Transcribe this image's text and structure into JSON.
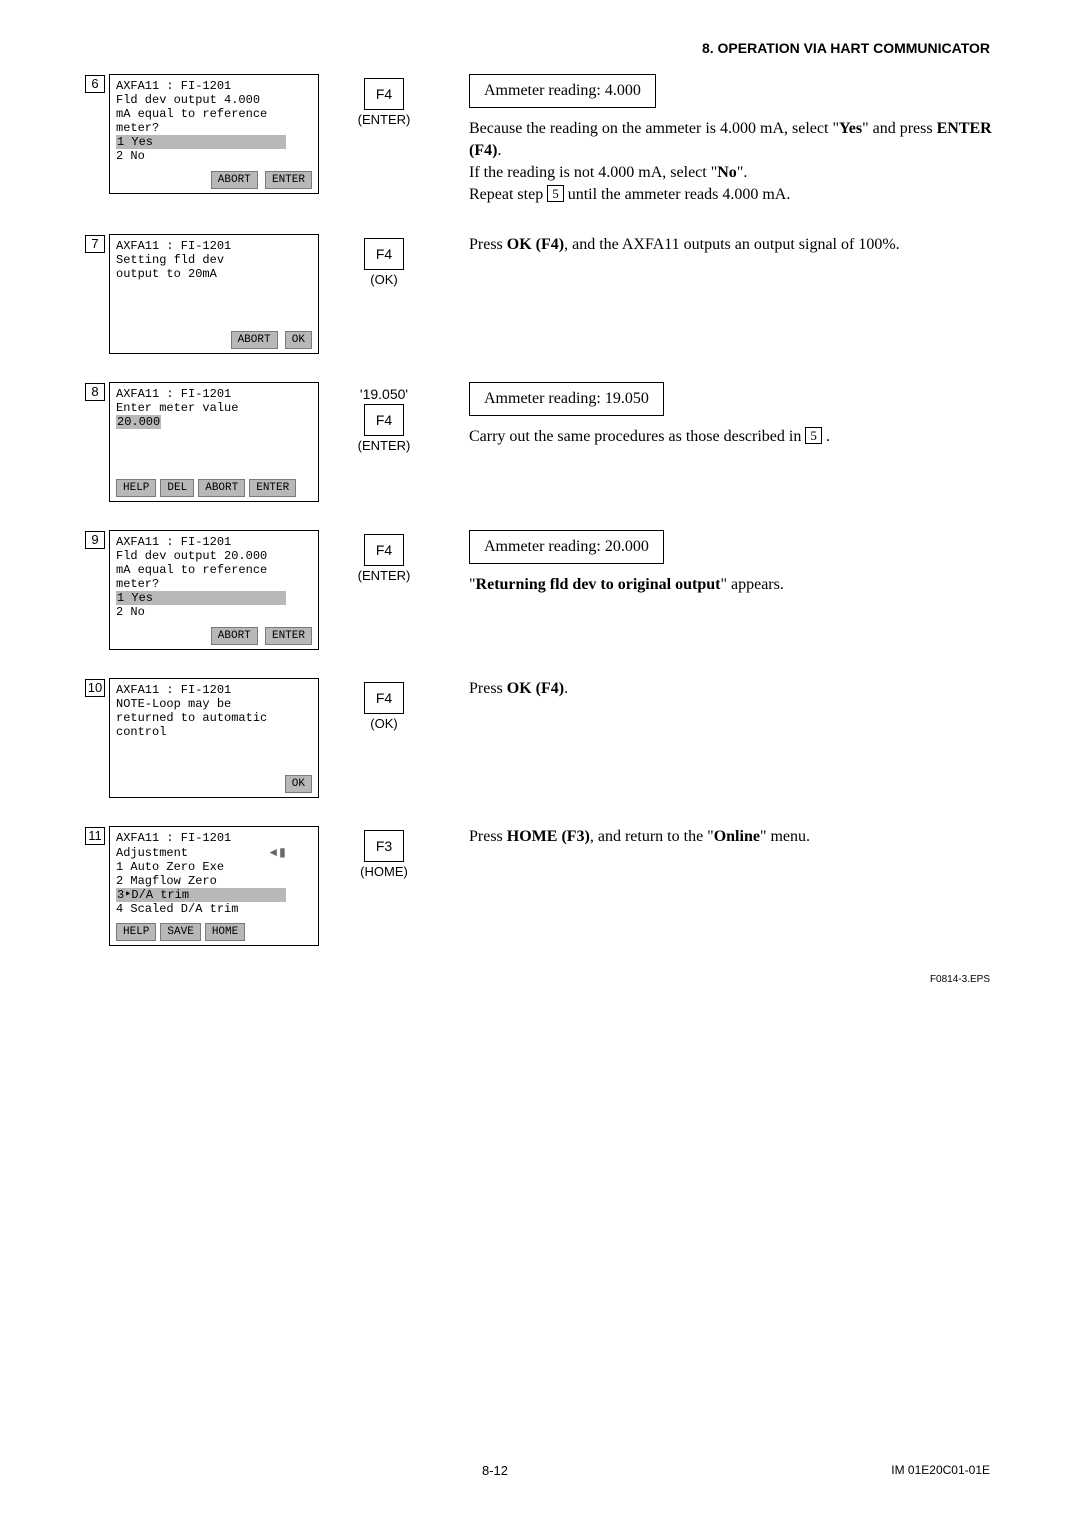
{
  "header": "8.  OPERATION VIA HART COMMUNICATOR",
  "steps": [
    {
      "num": "6",
      "screen": {
        "title": "AXFA11 : FI-1201",
        "lines": [
          "Fld dev output 4.000",
          "mA equal to reference",
          "meter?"
        ],
        "options": [
          {
            "t": "1 Yes",
            "sel": true,
            "wide": true
          },
          {
            "t": "2 No",
            "sel": false
          }
        ],
        "buttons_right": [
          "ABORT",
          "ENTER"
        ]
      },
      "key": {
        "pre": "",
        "box": "F4",
        "label": "(ENTER)"
      },
      "amm": "Ammeter reading: 4.000",
      "desc_html": "Because the reading on the ammeter is 4.000 mA, select \"<b>Yes</b>\" and press <b>ENTER (F4)</b>.<br>If the reading is not 4.000 mA, select \"<b>No</b>\".<br>Repeat step <span class='inlinebox'>5</span> until the ammeter reads 4.000 mA."
    },
    {
      "num": "7",
      "screen": {
        "title": "AXFA11 : FI-1201",
        "lines": [
          "Setting fld dev",
          "output to 20mA"
        ],
        "options": [],
        "buttons_right": [
          "ABORT",
          "OK"
        ]
      },
      "key": {
        "pre": "",
        "box": "F4",
        "label": "(OK)"
      },
      "amm": "",
      "desc_html": "Press <b>OK (F4)</b>, and the AXFA11 outputs an output signal of 100%."
    },
    {
      "num": "8",
      "screen": {
        "title": "AXFA11 : FI-1201",
        "lines": [
          "Enter meter value"
        ],
        "options": [
          {
            "t": "20.000",
            "sel": true
          }
        ],
        "buttons_left": [
          "HELP",
          "DEL",
          "ABORT",
          "ENTER"
        ]
      },
      "key": {
        "pre": "'19.050'",
        "box": "F4",
        "label": "(ENTER)"
      },
      "amm": "Ammeter reading: 19.050",
      "desc_html": "Carry out the same procedures as those described in <span class='inlinebox'>5</span> ."
    },
    {
      "num": "9",
      "screen": {
        "title": "AXFA11 : FI-1201",
        "lines": [
          "Fld dev output 20.000",
          "mA equal to reference",
          "meter?"
        ],
        "options": [
          {
            "t": "1 Yes",
            "sel": true,
            "wide": true
          },
          {
            "t": "2 No",
            "sel": false
          }
        ],
        "buttons_right": [
          "ABORT",
          "ENTER"
        ]
      },
      "key": {
        "pre": "",
        "box": "F4",
        "label": "(ENTER)"
      },
      "amm": "Ammeter reading: 20.000",
      "desc_html": "\"<b>Returning fld dev to original output</b>\" appears."
    },
    {
      "num": "10",
      "screen": {
        "title": "AXFA11 : FI-1201",
        "lines": [
          "NOTE-Loop may be",
          "returned to automatic",
          "control"
        ],
        "options": [],
        "buttons_right": [
          "OK"
        ]
      },
      "key": {
        "pre": "",
        "box": "F4",
        "label": "(OK)"
      },
      "amm": "",
      "desc_html": "Press <b>OK (F4)</b>."
    },
    {
      "num": "11",
      "screen": {
        "title": "AXFA11 : FI-1201",
        "title_arrow": true,
        "lines": [
          "Adjustment"
        ],
        "options": [
          {
            "t": "1 Auto Zero Exe",
            "sel": false
          },
          {
            "t": "2 Magflow Zero",
            "sel": false
          },
          {
            "t": "3‣D/A trim",
            "sel": true,
            "wide": true
          },
          {
            "t": "4 Scaled D/A trim",
            "sel": false
          }
        ],
        "buttons_left": [
          "HELP",
          "SAVE",
          "HOME"
        ]
      },
      "key": {
        "pre": "",
        "box": "F3",
        "label": "(HOME)"
      },
      "amm": "",
      "desc_html": "Press <b>HOME (F3)</b>, and return to the \"<b>Online</b>\" menu."
    }
  ],
  "eps": "F0814-3.EPS",
  "page_num": "8-12",
  "doc_id": "IM 01E20C01-01E"
}
